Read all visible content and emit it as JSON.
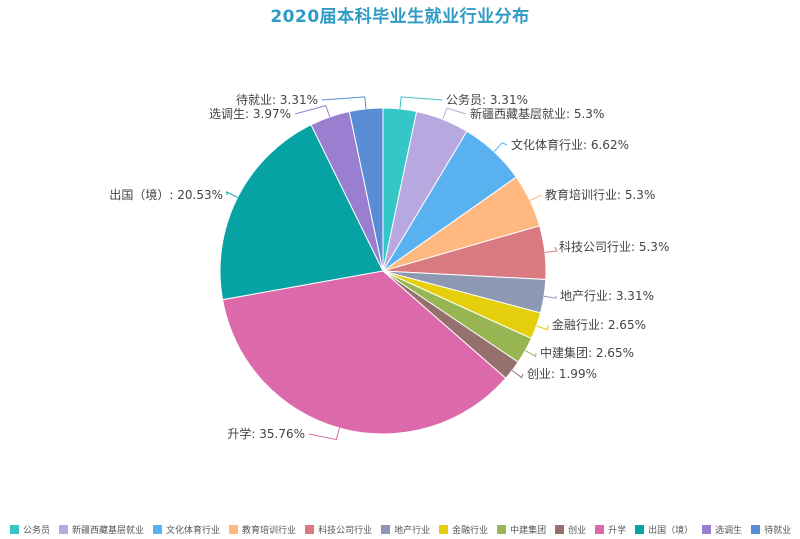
{
  "chart_data": {
    "type": "pie",
    "title": "2020届本科毕业生就业行业分布",
    "slices": [
      {
        "name": "公务员",
        "value": 3.31,
        "label": "公务员: 3.31%",
        "color": "#35c6c6"
      },
      {
        "name": "新疆西藏基层就业",
        "value": 5.3,
        "label": "新疆西藏基层就业: 5.3%",
        "color": "#b7a8e0"
      },
      {
        "name": "文化体育行业",
        "value": 6.62,
        "label": "文化体育行业: 6.62%",
        "color": "#5ab1ef"
      },
      {
        "name": "教育培训行业",
        "value": 5.3,
        "label": "教育培训行业: 5.3%",
        "color": "#ffb980"
      },
      {
        "name": "科技公司行业",
        "value": 5.3,
        "label": "科技公司行业: 5.3%",
        "color": "#d87a80"
      },
      {
        "name": "地产行业",
        "value": 3.31,
        "label": "地产行业: 3.31%",
        "color": "#8d98b3"
      },
      {
        "name": "金融行业",
        "value": 2.65,
        "label": "金融行业: 2.65%",
        "color": "#e5cf0d"
      },
      {
        "name": "中建集团",
        "value": 2.65,
        "label": "中建集团: 2.65%",
        "color": "#97b552"
      },
      {
        "name": "创业",
        "value": 1.99,
        "label": "创业: 1.99%",
        "color": "#95706d"
      },
      {
        "name": "升学",
        "value": 35.76,
        "label": "升学: 35.76%",
        "color": "#dc69aa"
      },
      {
        "name": "出国（境）",
        "value": 20.53,
        "label": "出国（境）: 20.53%",
        "color": "#07a2a4"
      },
      {
        "name": "选调生",
        "value": 3.97,
        "label": "选调生: 3.97%",
        "color": "#9a7fd1"
      },
      {
        "name": "待就业",
        "value": 3.31,
        "label": "待就业: 3.31%",
        "color": "#588dd5"
      }
    ],
    "legend": {
      "position": "bottom",
      "items": [
        "公务员",
        "新疆西藏基层就业",
        "文化体育行业",
        "教育培训行业",
        "科技公司行业",
        "地产行业",
        "金融行业",
        "中建集团",
        "创业",
        "升学",
        "出国（境）",
        "选调生",
        "待就业"
      ]
    }
  }
}
